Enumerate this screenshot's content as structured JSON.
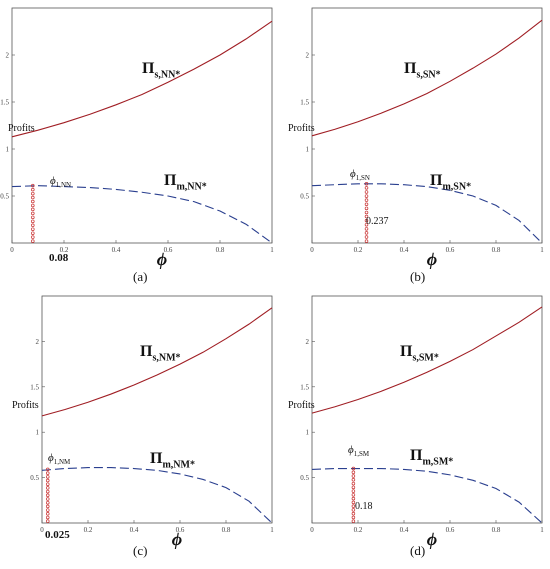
{
  "colors": {
    "solid_series": "#a01e24",
    "dashed_series": "#2a3f8f",
    "markers": "#c83030",
    "axis": "#555555"
  },
  "chart_data": [
    {
      "type": "line",
      "panel_label": "(a)",
      "ylabel": "Profits",
      "xlabel": "ϕ",
      "xlim": [
        0,
        1
      ],
      "ylim": [
        0,
        2.5
      ],
      "xticks": [
        0,
        0.2,
        0.4,
        0.6,
        0.8,
        1
      ],
      "xtick_labels": [
        "0",
        "0.2",
        "0.4",
        "0.6",
        "0.8",
        "1"
      ],
      "yticks": [
        0.5,
        1,
        1.5,
        2
      ],
      "ytick_labels": [
        "0.5",
        "1",
        "1.5",
        "2"
      ],
      "series": [
        {
          "label_main": "Π",
          "label_sub": "s,NN*",
          "style": "solid",
          "x": [
            0,
            0.1,
            0.2,
            0.3,
            0.4,
            0.5,
            0.6,
            0.7,
            0.8,
            0.9,
            1
          ],
          "y": [
            1.13,
            1.2,
            1.28,
            1.37,
            1.47,
            1.58,
            1.71,
            1.85,
            2.0,
            2.17,
            2.36
          ]
        },
        {
          "label_main": "Π",
          "label_sub": "m,NN*",
          "style": "dashed",
          "x": [
            0,
            0.1,
            0.2,
            0.3,
            0.4,
            0.5,
            0.6,
            0.7,
            0.8,
            0.9,
            1
          ],
          "y": [
            0.6,
            0.61,
            0.6,
            0.59,
            0.57,
            0.54,
            0.5,
            0.44,
            0.34,
            0.2,
            0.0
          ]
        }
      ],
      "threshold": {
        "x": 0.08,
        "y": 0.61,
        "label_main": "ϕ",
        "label_sub": "1,NN",
        "value_label": "0.08",
        "value_label_pos": "below-axis"
      }
    },
    {
      "type": "line",
      "panel_label": "(b)",
      "ylabel": "Profits",
      "xlabel": "ϕ",
      "xlim": [
        0,
        1
      ],
      "ylim": [
        0,
        2.5
      ],
      "xticks": [
        0,
        0.2,
        0.4,
        0.6,
        0.8,
        1
      ],
      "xtick_labels": [
        "0",
        "0.2",
        "0.4",
        "0.6",
        "0.8",
        "1"
      ],
      "yticks": [
        0.5,
        1,
        1.5,
        2
      ],
      "ytick_labels": [
        "0.5",
        "1",
        "1.5",
        "2"
      ],
      "series": [
        {
          "label_main": "Π",
          "label_sub": "s,SN*",
          "style": "solid",
          "x": [
            0,
            0.1,
            0.2,
            0.3,
            0.4,
            0.5,
            0.6,
            0.7,
            0.8,
            0.9,
            1
          ],
          "y": [
            1.14,
            1.21,
            1.29,
            1.38,
            1.48,
            1.59,
            1.72,
            1.86,
            2.01,
            2.18,
            2.37
          ]
        },
        {
          "label_main": "Π",
          "label_sub": "m,SN*",
          "style": "dashed",
          "x": [
            0,
            0.1,
            0.2,
            0.3,
            0.4,
            0.5,
            0.6,
            0.7,
            0.8,
            0.9,
            1
          ],
          "y": [
            0.61,
            0.62,
            0.63,
            0.63,
            0.62,
            0.6,
            0.56,
            0.5,
            0.4,
            0.24,
            0.0
          ]
        }
      ],
      "threshold": {
        "x": 0.237,
        "y": 0.63,
        "label_main": "ϕ",
        "label_sub": "1,SN",
        "value_label": "0.237",
        "value_label_pos": "inside"
      }
    },
    {
      "type": "line",
      "panel_label": "(c)",
      "ylabel": "Profits",
      "xlabel": "ϕ",
      "xlim": [
        0,
        1
      ],
      "ylim": [
        0,
        2.5
      ],
      "xticks": [
        0,
        0.2,
        0.4,
        0.6,
        0.8,
        1
      ],
      "xtick_labels": [
        "0",
        "0.2",
        "0.4",
        "0.6",
        "0.8",
        "1"
      ],
      "yticks": [
        0.5,
        1,
        1.5,
        2
      ],
      "ytick_labels": [
        "0.5",
        "1",
        "1.5",
        "2"
      ],
      "series": [
        {
          "label_main": "Π",
          "label_sub": "s,NM*",
          "style": "solid",
          "x": [
            0,
            0.1,
            0.2,
            0.3,
            0.4,
            0.5,
            0.6,
            0.7,
            0.8,
            0.9,
            1
          ],
          "y": [
            1.18,
            1.25,
            1.33,
            1.42,
            1.52,
            1.63,
            1.75,
            1.88,
            2.03,
            2.19,
            2.37
          ]
        },
        {
          "label_main": "Π",
          "label_sub": "m,NM*",
          "style": "dashed",
          "x": [
            0,
            0.1,
            0.2,
            0.3,
            0.4,
            0.5,
            0.6,
            0.7,
            0.8,
            0.9,
            1
          ],
          "y": [
            0.58,
            0.6,
            0.61,
            0.61,
            0.6,
            0.58,
            0.54,
            0.48,
            0.39,
            0.24,
            0.0
          ]
        }
      ],
      "threshold": {
        "x": 0.025,
        "y": 0.59,
        "label_main": "ϕ",
        "label_sub": "1,NM",
        "value_label": "0.025",
        "value_label_pos": "below-axis"
      }
    },
    {
      "type": "line",
      "panel_label": "(d)",
      "ylabel": "Profits",
      "xlabel": "ϕ",
      "xlim": [
        0,
        1
      ],
      "ylim": [
        0,
        2.5
      ],
      "xticks": [
        0,
        0.2,
        0.4,
        0.6,
        0.8,
        1
      ],
      "xtick_labels": [
        "0",
        "0.2",
        "0.4",
        "0.6",
        "0.8",
        "1"
      ],
      "yticks": [
        0.5,
        1,
        1.5,
        2
      ],
      "ytick_labels": [
        "0.5",
        "1",
        "1.5",
        "2"
      ],
      "series": [
        {
          "label_main": "Π",
          "label_sub": "s,SM*",
          "style": "solid",
          "x": [
            0,
            0.1,
            0.2,
            0.3,
            0.4,
            0.5,
            0.6,
            0.7,
            0.8,
            0.9,
            1
          ],
          "y": [
            1.21,
            1.28,
            1.36,
            1.45,
            1.55,
            1.66,
            1.78,
            1.91,
            2.06,
            2.21,
            2.38
          ]
        },
        {
          "label_main": "Π",
          "label_sub": "m,SM*",
          "style": "dashed",
          "x": [
            0,
            0.1,
            0.2,
            0.3,
            0.4,
            0.5,
            0.6,
            0.7,
            0.8,
            0.9,
            1
          ],
          "y": [
            0.59,
            0.6,
            0.6,
            0.6,
            0.59,
            0.57,
            0.53,
            0.47,
            0.38,
            0.23,
            0.0
          ]
        }
      ],
      "threshold": {
        "x": 0.18,
        "y": 0.6,
        "label_main": "ϕ",
        "label_sub": "1,SM",
        "value_label": "0.18",
        "value_label_pos": "inside"
      }
    }
  ]
}
